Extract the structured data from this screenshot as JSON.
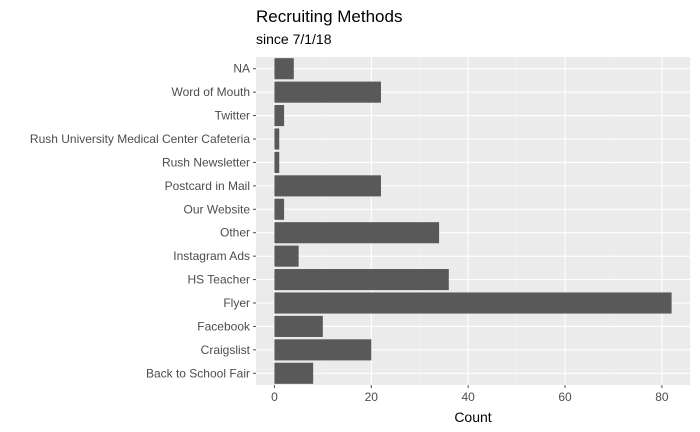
{
  "chart_data": {
    "type": "bar",
    "orientation": "horizontal",
    "title": "Recruiting Methods",
    "subtitle": "since 7/1/18",
    "xlabel": "Count",
    "ylabel": "",
    "categories": [
      "NA",
      "Word of Mouth",
      "Twitter",
      "Rush University Medical Center Cafeteria",
      "Rush Newsletter",
      "Postcard in Mail",
      "Our Website",
      "Other",
      "Instagram Ads",
      "HS Teacher",
      "Flyer",
      "Facebook",
      "Craigslist",
      "Back to School Fair"
    ],
    "values": [
      4,
      22,
      2,
      1,
      1,
      22,
      2,
      34,
      5,
      36,
      82,
      10,
      20,
      8
    ],
    "xlim": [
      -3.8,
      85.8
    ],
    "xticks": [
      0,
      20,
      40,
      60,
      80
    ],
    "grid": true,
    "colors": {
      "bar": "#595959",
      "panel": "#ebebeb",
      "grid_major": "#ffffff",
      "grid_minor": "#f2f2f2",
      "tick": "#4d4d4d"
    }
  }
}
